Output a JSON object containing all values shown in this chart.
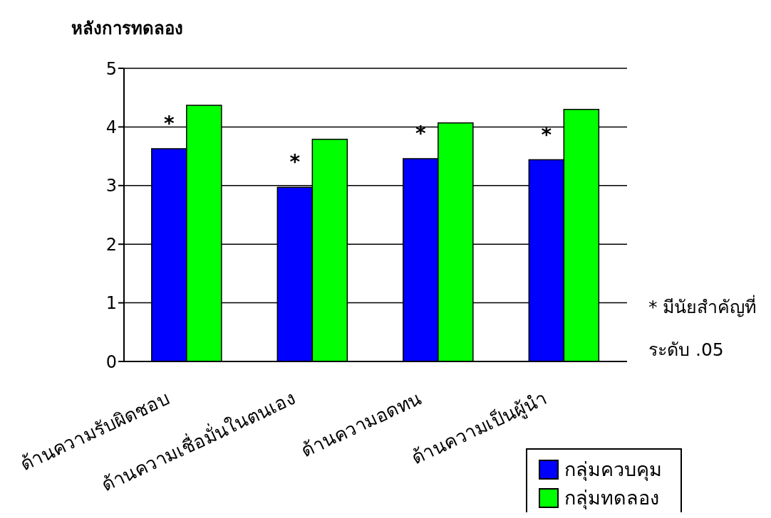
{
  "chart_data": {
    "type": "bar",
    "title": "หลังการทดลอง",
    "categories": [
      "ด้านความรับผิดชอบ",
      "ด้านความเชื่อมั่นในตนเอง",
      "ด้านความอดทน",
      "ด้านความเป็นผู้นำ"
    ],
    "series": [
      {
        "name": "กลุ่มควบคุม",
        "color": "#0000ff",
        "values": [
          3.63,
          2.97,
          3.46,
          3.44
        ]
      },
      {
        "name": "กลุ่มทดลอง",
        "color": "#00ff00",
        "values": [
          4.37,
          3.79,
          4.07,
          4.3
        ]
      }
    ],
    "ylim": [
      0,
      5
    ],
    "yticks": [
      0,
      1,
      2,
      3,
      4,
      5
    ],
    "grid": "y",
    "legend": "bottom right",
    "annotations": [
      {
        "text": "*",
        "x": "ด้านความรับผิดชอบ",
        "y": 3.63
      },
      {
        "text": "*",
        "x": "ด้านความเชื่อมั่นในตนเอง",
        "y": 2.97
      },
      {
        "text": "*",
        "x": "ด้านความอดทน",
        "y": 3.46
      },
      {
        "text": "*",
        "x": "ด้านความเป็นผู้นำ",
        "y": 3.44
      },
      "* มีนัยสำคัญที่",
      "ระดับ .05"
    ]
  }
}
